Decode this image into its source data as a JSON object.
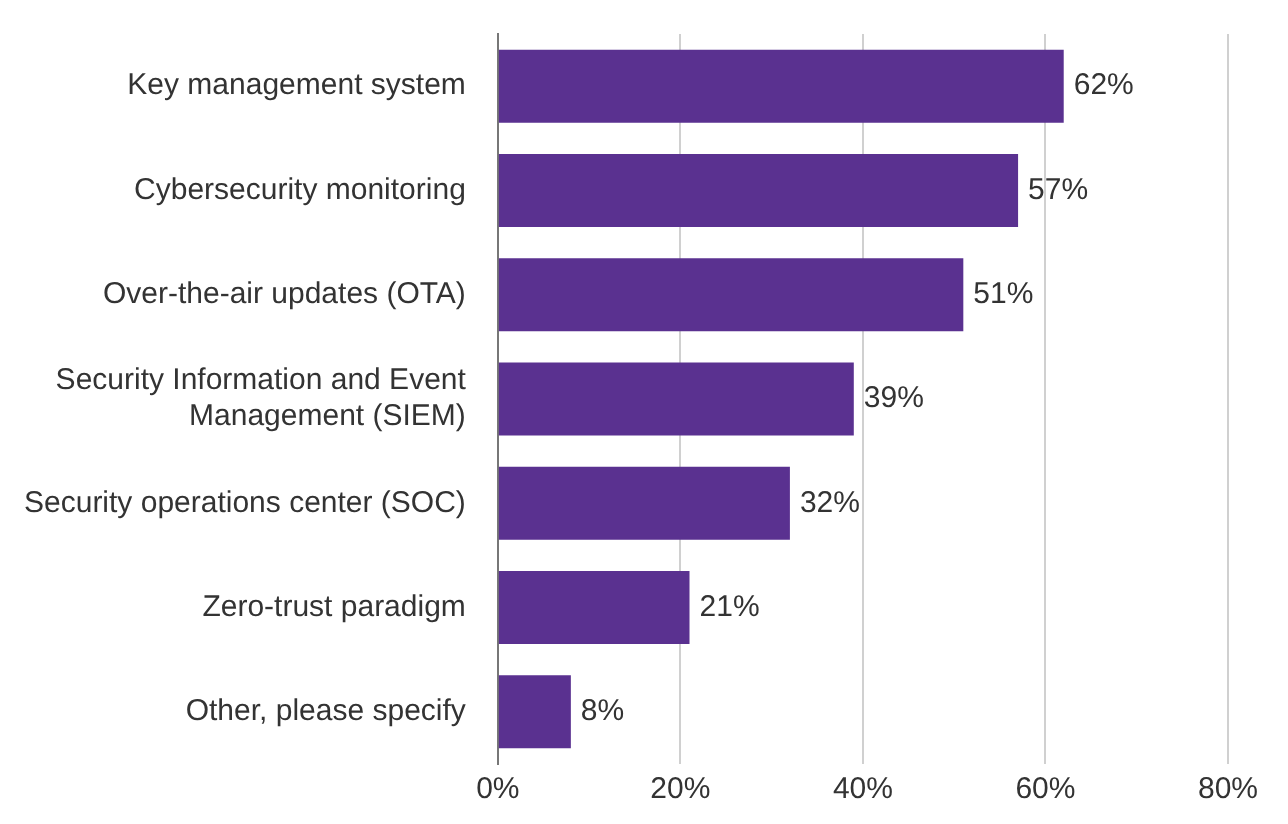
{
  "chart_data": {
    "type": "bar",
    "orientation": "horizontal",
    "categories": [
      "Key management system",
      "Cybersecurity monitoring",
      "Over-the-air updates (OTA)",
      "Security Information and Event Management (SIEM)",
      "Security operations center (SOC)",
      "Zero-trust paradigm",
      "Other, please specify"
    ],
    "values": [
      62,
      57,
      51,
      39,
      32,
      21,
      8
    ],
    "value_labels": [
      "62%",
      "57%",
      "51%",
      "39%",
      "32%",
      "21%",
      "8%"
    ],
    "color": "#5a3190",
    "xlim": [
      0,
      80
    ],
    "xticks": [
      {
        "value": 0,
        "label": "0%"
      },
      {
        "value": 20,
        "label": "20%"
      },
      {
        "value": 40,
        "label": "40%"
      },
      {
        "value": 60,
        "label": "60%"
      },
      {
        "value": 80,
        "label": "80%"
      }
    ],
    "grid": "x"
  }
}
